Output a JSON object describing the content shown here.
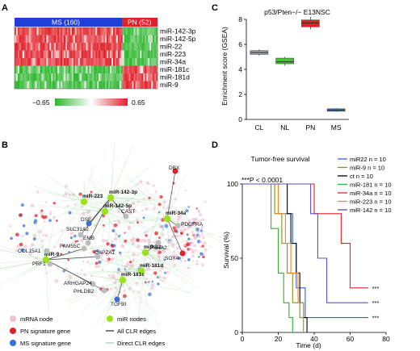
{
  "panels": {
    "A": {
      "letter": "A",
      "groups": [
        {
          "label": "MS (160)",
          "color": "#1f3fd6"
        },
        {
          "label": "PN (52)",
          "color": "#e0202a"
        }
      ],
      "rows": [
        "miR-142-3p",
        "miR-142-5p",
        "miR-22",
        "miR-223",
        "miR-34a",
        "miR-181c",
        "miR-181d",
        "miR-9"
      ],
      "scale_min": "−0.65",
      "scale_max": "0.65",
      "colors": {
        "low": "#2db82d",
        "mid": "#ffffff",
        "high": "#e0202a"
      }
    },
    "B": {
      "letter": "B",
      "mir_nodes": [
        "miR-142-3p",
        "miR-223",
        "miR-142-5p",
        "miR-34a",
        "miR-22",
        "miR-9",
        "miR-181d",
        "miR-181c"
      ],
      "gene_labels": [
        "DBX",
        "CAST",
        "PDGFRA",
        "SOX4",
        "DSE",
        "SLC31A2",
        "EMB",
        "P4HA2",
        "FAM55C",
        "COL15A1",
        "PRF1",
        "CAPZA1",
        "ARHGAP24",
        "PHLDB2",
        "TGFBI"
      ],
      "legend": [
        {
          "label": "mRNA node",
          "icon": "pink-circle-icon",
          "color": "#f3bfd3"
        },
        {
          "label": "PN signature gene",
          "icon": "red-circle-icon",
          "color": "#e0202a"
        },
        {
          "label": "MS signature gene",
          "icon": "blue-circle-icon",
          "color": "#3a6fd8"
        },
        {
          "label": "miR nodes",
          "icon": "green-circle-icon",
          "color": "#9be21a"
        },
        {
          "label": "All CLR edges",
          "icon": "dark-line-icon",
          "color": "#444444"
        },
        {
          "label": "Direct CLR edges",
          "icon": "light-line-icon",
          "color": "#9fd9a4"
        }
      ]
    },
    "C": {
      "letter": "C",
      "chart_data": {
        "type": "box",
        "title": "p53/Pten−/− E13NSC",
        "ylabel": "Enrichment score (GSEA)",
        "categories": [
          "CL",
          "NL",
          "PN",
          "MS"
        ],
        "ylim": [
          0,
          8
        ],
        "yticks": [
          0,
          2,
          4,
          6,
          8
        ],
        "boxes": [
          {
            "name": "CL",
            "min": 5.1,
            "q1": 5.2,
            "median": 5.35,
            "q3": 5.5,
            "max": 5.6,
            "color": "#9aa0a6"
          },
          {
            "name": "NL",
            "min": 4.3,
            "q1": 4.45,
            "median": 4.6,
            "q3": 4.9,
            "max": 5.0,
            "color": "#46c23b"
          },
          {
            "name": "PN",
            "min": 7.2,
            "q1": 7.4,
            "median": 7.7,
            "q3": 7.95,
            "max": 8.2,
            "color": "#e0202a"
          },
          {
            "name": "MS",
            "min": 0.6,
            "q1": 0.65,
            "median": 0.75,
            "q3": 0.85,
            "max": 0.9,
            "color": "#3a6fd8"
          }
        ]
      }
    },
    "D": {
      "letter": "D",
      "chart_data": {
        "type": "line",
        "title": "Tumor-free survival",
        "xlabel": "Time (d)",
        "ylabel": "Survival (%)",
        "xlim": [
          0,
          80
        ],
        "ylim": [
          0,
          100
        ],
        "xticks": [
          0,
          20,
          40,
          60,
          80
        ],
        "yticks": [
          0,
          50,
          100
        ],
        "annotation": "***P < 0.0001",
        "sig_marks": "***",
        "series": [
          {
            "name": "miR22 n = 10",
            "color": "#3a5fcd",
            "points": [
              [
                0,
                100
              ],
              [
                20,
                100
              ],
              [
                20,
                80
              ],
              [
                28,
                80
              ],
              [
                28,
                60
              ],
              [
                30,
                60
              ],
              [
                30,
                30
              ],
              [
                35,
                30
              ],
              [
                35,
                10
              ],
              [
                70,
                10
              ]
            ]
          },
          {
            "name": "miR-9 n = 10",
            "color": "#8c8c1a",
            "points": [
              [
                0,
                100
              ],
              [
                18,
                100
              ],
              [
                18,
                80
              ],
              [
                22,
                80
              ],
              [
                22,
                60
              ],
              [
                25,
                60
              ],
              [
                25,
                40
              ],
              [
                28,
                40
              ],
              [
                28,
                20
              ],
              [
                32,
                20
              ],
              [
                32,
                10
              ],
              [
                34,
                10
              ],
              [
                34,
                0
              ]
            ]
          },
          {
            "name": "ct n = 10",
            "color": "#000000",
            "points": [
              [
                0,
                100
              ],
              [
                25,
                100
              ],
              [
                25,
                80
              ],
              [
                27,
                80
              ],
              [
                27,
                60
              ],
              [
                30,
                60
              ],
              [
                30,
                40
              ],
              [
                32,
                40
              ],
              [
                32,
                20
              ],
              [
                34,
                20
              ],
              [
                34,
                10
              ],
              [
                36,
                10
              ],
              [
                36,
                0
              ]
            ]
          },
          {
            "name": "miR-181 n = 10",
            "color": "#3aa83a",
            "points": [
              [
                0,
                100
              ],
              [
                16,
                100
              ],
              [
                16,
                70
              ],
              [
                20,
                70
              ],
              [
                20,
                40
              ],
              [
                23,
                40
              ],
              [
                23,
                20
              ],
              [
                26,
                20
              ],
              [
                26,
                10
              ],
              [
                28,
                10
              ],
              [
                28,
                0
              ]
            ]
          },
          {
            "name": "miR-34a n = 10",
            "color": "#e0202a",
            "points": [
              [
                0,
                100
              ],
              [
                40,
                100
              ],
              [
                40,
                80
              ],
              [
                55,
                80
              ],
              [
                55,
                60
              ],
              [
                60,
                60
              ],
              [
                60,
                30
              ],
              [
                70,
                30
              ]
            ]
          },
          {
            "name": "miR-223 n = 10",
            "color": "#ef8b1f",
            "points": [
              [
                0,
                100
              ],
              [
                20,
                100
              ],
              [
                20,
                80
              ],
              [
                24,
                80
              ],
              [
                24,
                60
              ],
              [
                27,
                60
              ],
              [
                27,
                40
              ],
              [
                31,
                40
              ],
              [
                31,
                20
              ],
              [
                34,
                20
              ],
              [
                34,
                0
              ]
            ]
          },
          {
            "name": "miR-142 n = 10",
            "color": "#5b4fc2",
            "points": [
              [
                0,
                100
              ],
              [
                38,
                100
              ],
              [
                38,
                80
              ],
              [
                42,
                80
              ],
              [
                42,
                50
              ],
              [
                47,
                50
              ],
              [
                47,
                20
              ],
              [
                70,
                20
              ]
            ]
          }
        ]
      }
    }
  }
}
